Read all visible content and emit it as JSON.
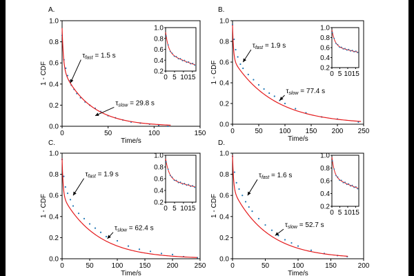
{
  "chart_data": [
    {
      "type": "scatter",
      "panel_label": "A.",
      "xlabel": "Time/s",
      "ylabel": "1 - CDF",
      "xlim": [
        0,
        150
      ],
      "ylim": [
        0,
        1.0
      ],
      "xticks": [
        "0",
        "50",
        "100",
        "150"
      ],
      "yticks": [
        "0.0",
        "0.2",
        "0.4",
        "0.6",
        "0.8",
        "1.0"
      ],
      "fit": {
        "a_fast": 0.38,
        "tau_fast": 1.5,
        "a_slow": 0.55,
        "tau_slow": 29.8,
        "x_end": 118
      },
      "series": [
        {
          "color": "#1f77b4",
          "x": [
            0,
            2,
            4,
            6,
            8,
            10,
            13,
            16,
            20,
            25,
            30,
            36,
            42,
            50,
            58,
            66,
            75,
            85,
            95,
            105,
            115
          ],
          "y": [
            0.86,
            0.63,
            0.55,
            0.48,
            0.43,
            0.39,
            0.35,
            0.31,
            0.27,
            0.23,
            0.2,
            0.17,
            0.14,
            0.1,
            0.08,
            0.06,
            0.04,
            0.03,
            0.02,
            0.01,
            0.0
          ]
        },
        {
          "color": "#e41a1c",
          "x": [],
          "y": []
        }
      ],
      "annotations": [
        {
          "sym": "τ",
          "sub": "fast",
          "text": " = 1.5 s",
          "tx": 22,
          "ty": 0.65,
          "ax": 9,
          "ay": 0.41
        },
        {
          "sym": "τ",
          "sub": "slow",
          "text": " = 29.8 s",
          "tx": 58,
          "ty": 0.2,
          "ax": 36,
          "ay": 0.1
        }
      ],
      "inset": {
        "xlim": [
          0,
          17
        ],
        "ylim": [
          0.2,
          1.0
        ],
        "xticks": [
          "0",
          "5",
          "1015"
        ],
        "yticks": [
          "0.2",
          "0.4",
          "0.6",
          "0.8",
          "1.0"
        ]
      }
    },
    {
      "type": "scatter",
      "panel_label": "B.",
      "xlabel": "Time/s",
      "ylabel": "1 - CDF",
      "xlim": [
        0,
        250
      ],
      "ylim": [
        0,
        1.0
      ],
      "xticks": [
        "0",
        "50",
        "100",
        "150",
        "200",
        "250"
      ],
      "yticks": [
        "0.0",
        "0.2",
        "0.4",
        "0.6",
        "0.8",
        "1.0"
      ],
      "fit": {
        "a_fast": 0.33,
        "tau_fast": 1.9,
        "a_slow": 0.63,
        "tau_slow": 77.4,
        "x_end": 245
      },
      "series": [
        {
          "color": "#1f77b4",
          "x": [
            0,
            3,
            6,
            10,
            15,
            20,
            30,
            40,
            50,
            60,
            70,
            80,
            90,
            100,
            120,
            140,
            170,
            200,
            240
          ],
          "y": [
            0.96,
            0.82,
            0.72,
            0.65,
            0.58,
            0.54,
            0.48,
            0.43,
            0.38,
            0.34,
            0.3,
            0.27,
            0.23,
            0.2,
            0.15,
            0.11,
            0.07,
            0.05,
            0.02
          ]
        },
        {
          "color": "#e41a1c",
          "x": [],
          "y": []
        }
      ],
      "annotations": [
        {
          "sym": "τ",
          "sub": "fast",
          "text": " = 1.9 s",
          "tx": 38,
          "ty": 0.74,
          "ax": 20,
          "ay": 0.6
        },
        {
          "sym": "τ",
          "sub": "slow",
          "text": " = 77.4 s",
          "tx": 102,
          "ty": 0.3,
          "ax": 90,
          "ay": 0.23
        }
      ],
      "inset": {
        "xlim": [
          0,
          17
        ],
        "ylim": [
          0.2,
          1.0
        ],
        "xticks": [
          "0",
          "5",
          "1015"
        ],
        "yticks": [
          "0.2",
          "0.4",
          "0.6",
          "0.8",
          "1.0"
        ]
      }
    },
    {
      "type": "scatter",
      "panel_label": "C.",
      "xlabel": "Time/s",
      "ylabel": "1 - CDF",
      "xlim": [
        0,
        250
      ],
      "ylim": [
        0,
        1.0
      ],
      "xticks": [
        "0",
        "50",
        "100",
        "150",
        "200",
        "250"
      ],
      "yticks": [
        "0.0",
        "0.2",
        "0.4",
        "0.6",
        "0.8",
        "1.0"
      ],
      "fit": {
        "a_fast": 0.35,
        "tau_fast": 1.9,
        "a_slow": 0.6,
        "tau_slow": 62.4,
        "x_end": 245
      },
      "series": [
        {
          "color": "#1f77b4",
          "x": [
            0,
            3,
            6,
            10,
            15,
            20,
            30,
            40,
            50,
            60,
            70,
            80,
            100,
            120,
            140,
            160,
            180,
            200,
            220,
            245
          ],
          "y": [
            0.94,
            0.78,
            0.68,
            0.62,
            0.56,
            0.5,
            0.43,
            0.38,
            0.33,
            0.29,
            0.25,
            0.21,
            0.17,
            0.12,
            0.09,
            0.07,
            0.05,
            0.04,
            0.02,
            0.01
          ]
        },
        {
          "color": "#e41a1c",
          "x": [],
          "y": []
        }
      ],
      "annotations": [
        {
          "sym": "τ",
          "sub": "fast",
          "text": " = 1.9 s",
          "tx": 42,
          "ty": 0.78,
          "ax": 20,
          "ay": 0.6
        },
        {
          "sym": "τ",
          "sub": "slow",
          "text": " = 62.4 s",
          "tx": 95,
          "ty": 0.27,
          "ax": 82,
          "ay": 0.19
        }
      ],
      "inset": {
        "xlim": [
          0,
          17
        ],
        "ylim": [
          0.2,
          1.0
        ],
        "xticks": [
          "0",
          "5",
          "1015"
        ],
        "yticks": [
          "0.2",
          "0.4",
          "0.6",
          "0.8",
          "1.0"
        ]
      }
    },
    {
      "type": "scatter",
      "panel_label": "D.",
      "xlabel": "Time/s",
      "ylabel": "1 - CDF",
      "xlim": [
        0,
        200
      ],
      "ylim": [
        0,
        1.0
      ],
      "xticks": [
        "0",
        "50",
        "100",
        "150",
        "200"
      ],
      "yticks": [
        "0.0",
        "0.2",
        "0.4",
        "0.6",
        "0.8",
        "1.0"
      ],
      "fit": {
        "a_fast": 0.32,
        "tau_fast": 1.6,
        "a_slow": 0.66,
        "tau_slow": 52.7,
        "x_end": 176
      },
      "series": [
        {
          "color": "#1f77b4",
          "x": [
            0,
            3,
            6,
            10,
            15,
            20,
            25,
            30,
            40,
            50,
            60,
            70,
            80,
            90,
            100,
            120,
            140,
            160,
            175
          ],
          "y": [
            0.97,
            0.82,
            0.72,
            0.66,
            0.6,
            0.54,
            0.49,
            0.45,
            0.38,
            0.32,
            0.27,
            0.22,
            0.18,
            0.15,
            0.12,
            0.08,
            0.05,
            0.03,
            0.02
          ]
        },
        {
          "color": "#e41a1c",
          "x": [],
          "y": []
        }
      ],
      "annotations": [
        {
          "sym": "τ",
          "sub": "fast",
          "text": " = 1.6 s",
          "tx": 40,
          "ty": 0.77,
          "ax": 23,
          "ay": 0.6
        },
        {
          "sym": "τ",
          "sub": "slow",
          "text": " = 52.7 s",
          "tx": 80,
          "ty": 0.3,
          "ax": 65,
          "ay": 0.22
        }
      ],
      "inset": {
        "xlim": [
          0,
          17
        ],
        "ylim": [
          0.2,
          1.0
        ],
        "xticks": [
          "0",
          "5",
          "1015"
        ],
        "yticks": [
          "0.2",
          "0.4",
          "0.6",
          "0.8",
          "1.0"
        ]
      }
    }
  ]
}
